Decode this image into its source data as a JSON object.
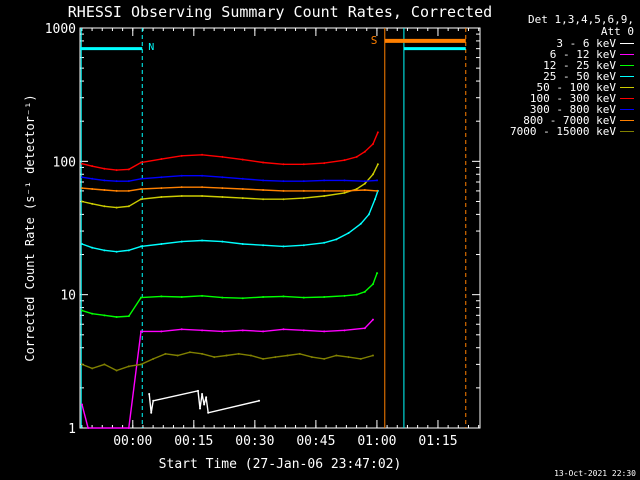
{
  "chart_data": {
    "type": "line",
    "title": "RHESSI Observing Summary Count Rates, Corrected",
    "xlabel": "Start Time (27-Jan-06 23:47:02)",
    "ylabel": "Corrected Count Rate (s⁻¹ detector⁻¹)",
    "y_scale": "log",
    "ylim": [
      1,
      1000
    ],
    "y_ticks": [
      "1",
      "10",
      "100",
      "1000"
    ],
    "x_ticks": [
      "00:00",
      "00:15",
      "00:30",
      "00:45",
      "01:00",
      "01:15"
    ],
    "x_tick_minutes": [
      12.97,
      27.97,
      42.97,
      57.97,
      72.97,
      87.97
    ],
    "xlim_minutes": [
      0,
      98.3
    ],
    "detectors": "Det 1,3,4,5,6,9,",
    "attenuator": "Att 0",
    "markers": {
      "N_label": "N",
      "S_label": "S",
      "night_bar": {
        "x_start": 0,
        "x_end": 15.3,
        "y": 700,
        "color": "#00ffff"
      },
      "night_bar2": {
        "x_start": 79.6,
        "x_end": 94.8,
        "y": 700,
        "color": "#00ffff"
      },
      "saa_bar": {
        "x_start": 74.9,
        "x_end": 94.8,
        "y": 800,
        "color": "#ff8000"
      },
      "lines": [
        {
          "x": 0.3,
          "color": "#00ffff",
          "dash": false
        },
        {
          "x": 15.3,
          "color": "#00ffff",
          "dash": true
        },
        {
          "x": 74.9,
          "color": "#ff8000",
          "dash": false
        },
        {
          "x": 79.6,
          "color": "#00ffff",
          "dash": false
        },
        {
          "x": 94.8,
          "color": "#ff8000",
          "dash": true
        }
      ]
    },
    "series": [
      {
        "name": "3 - 6 keV",
        "color": "#ffffff",
        "x": [
          17.0,
          17.5,
          18.0,
          29.0,
          29.5,
          30.0,
          30.5,
          31.0,
          31.5,
          44.0
        ],
        "y": [
          1.8,
          1.3,
          1.6,
          1.9,
          1.4,
          1.8,
          1.5,
          1.7,
          1.3,
          1.6
        ]
      },
      {
        "name": "6 - 12 keV",
        "color": "#ff00ff",
        "x": [
          0.5,
          2.0,
          12.0,
          15.0,
          20.0,
          25.0,
          30.0,
          35.0,
          40.0,
          45.0,
          50.0,
          55.0,
          60.0,
          65.0,
          70.0,
          72.0
        ],
        "y": [
          1.5,
          1.0,
          1.0,
          5.3,
          5.3,
          5.5,
          5.4,
          5.3,
          5.4,
          5.3,
          5.5,
          5.4,
          5.3,
          5.4,
          5.6,
          6.5
        ]
      },
      {
        "name": "12 - 25 keV",
        "color": "#00ff00",
        "x": [
          0.5,
          3.0,
          6.0,
          9.0,
          12.0,
          15.0,
          20.0,
          25.0,
          30.0,
          35.0,
          40.0,
          45.0,
          50.0,
          55.0,
          60.0,
          65.0,
          68.0,
          70.0,
          72.0,
          73.0
        ],
        "y": [
          7.6,
          7.2,
          7.0,
          6.8,
          6.9,
          9.5,
          9.7,
          9.6,
          9.8,
          9.5,
          9.4,
          9.6,
          9.7,
          9.5,
          9.6,
          9.8,
          10.0,
          10.5,
          12.0,
          14.5
        ]
      },
      {
        "name": "25 - 50 keV",
        "color": "#00ffff",
        "x": [
          0.5,
          3.0,
          6.0,
          9.0,
          12.0,
          15.0,
          20.0,
          25.0,
          30.0,
          35.0,
          40.0,
          45.0,
          50.0,
          55.0,
          60.0,
          63.0,
          66.0,
          69.0,
          71.0,
          72.5,
          73.2
        ],
        "y": [
          24.0,
          22.5,
          21.5,
          21.0,
          21.5,
          23.0,
          24.0,
          25.0,
          25.5,
          25.0,
          24.0,
          23.5,
          23.0,
          23.5,
          24.5,
          26.0,
          29.0,
          34.0,
          40.0,
          52.0,
          60.0
        ]
      },
      {
        "name": "50 - 100 keV",
        "color": "#cccc00",
        "x": [
          0.5,
          3.0,
          6.0,
          9.0,
          12.0,
          15.0,
          20.0,
          25.0,
          30.0,
          35.0,
          40.0,
          45.0,
          50.0,
          55.0,
          60.0,
          65.0,
          68.0,
          70.0,
          72.0,
          73.2
        ],
        "y": [
          50.0,
          48.0,
          46.0,
          45.0,
          46.0,
          52.0,
          54.0,
          55.0,
          55.0,
          54.0,
          53.0,
          52.0,
          52.0,
          53.0,
          55.0,
          58.0,
          62.0,
          68.0,
          80.0,
          95.0
        ]
      },
      {
        "name": "100 - 300 keV",
        "color": "#ff0000",
        "x": [
          0.5,
          3.0,
          6.0,
          9.0,
          12.0,
          15.0,
          20.0,
          25.0,
          30.0,
          35.0,
          40.0,
          45.0,
          50.0,
          55.0,
          60.0,
          65.0,
          68.0,
          70.0,
          72.0,
          73.2
        ],
        "y": [
          96.0,
          92.0,
          88.0,
          86.0,
          87.0,
          98.0,
          104.0,
          110.0,
          112.0,
          108.0,
          103.0,
          98.0,
          95.0,
          95.0,
          97.0,
          102.0,
          108.0,
          118.0,
          135.0,
          165.0
        ]
      },
      {
        "name": "300 - 800 keV",
        "color": "#0000ff",
        "x": [
          0.5,
          3.0,
          6.0,
          9.0,
          12.0,
          15.0,
          20.0,
          25.0,
          30.0,
          35.0,
          40.0,
          45.0,
          50.0,
          55.0,
          60.0,
          65.0,
          70.0,
          73.0
        ],
        "y": [
          76.0,
          74.0,
          72.0,
          71.0,
          71.0,
          74.0,
          76.0,
          78.0,
          78.0,
          76.0,
          74.0,
          72.0,
          71.0,
          71.0,
          72.0,
          72.0,
          71.0,
          72.0
        ]
      },
      {
        "name": "800 - 7000 keV",
        "color": "#ff8000",
        "x": [
          0.5,
          3.0,
          6.0,
          9.0,
          12.0,
          15.0,
          20.0,
          25.0,
          30.0,
          35.0,
          40.0,
          45.0,
          50.0,
          55.0,
          60.0,
          65.0,
          70.0,
          73.0
        ],
        "y": [
          63.0,
          62.0,
          61.0,
          60.0,
          60.0,
          62.0,
          63.0,
          64.0,
          64.0,
          63.0,
          62.0,
          61.0,
          60.0,
          60.0,
          60.0,
          60.0,
          61.0,
          60.0
        ]
      },
      {
        "name": "7000 - 15000 keV",
        "color": "#808000",
        "x": [
          0.5,
          3.0,
          6.0,
          9.0,
          12.0,
          15.0,
          18.0,
          21.0,
          24.0,
          27.0,
          30.0,
          33.0,
          36.0,
          39.0,
          42.0,
          45.0,
          48.0,
          51.0,
          54.0,
          57.0,
          60.0,
          63.0,
          66.0,
          69.0,
          72.0
        ],
        "y": [
          3.0,
          2.8,
          3.0,
          2.7,
          2.9,
          3.0,
          3.3,
          3.6,
          3.5,
          3.7,
          3.6,
          3.4,
          3.5,
          3.6,
          3.5,
          3.3,
          3.4,
          3.5,
          3.6,
          3.4,
          3.3,
          3.5,
          3.4,
          3.3,
          3.5
        ]
      }
    ]
  },
  "footer_stamp": "13-Oct-2021 22:30"
}
